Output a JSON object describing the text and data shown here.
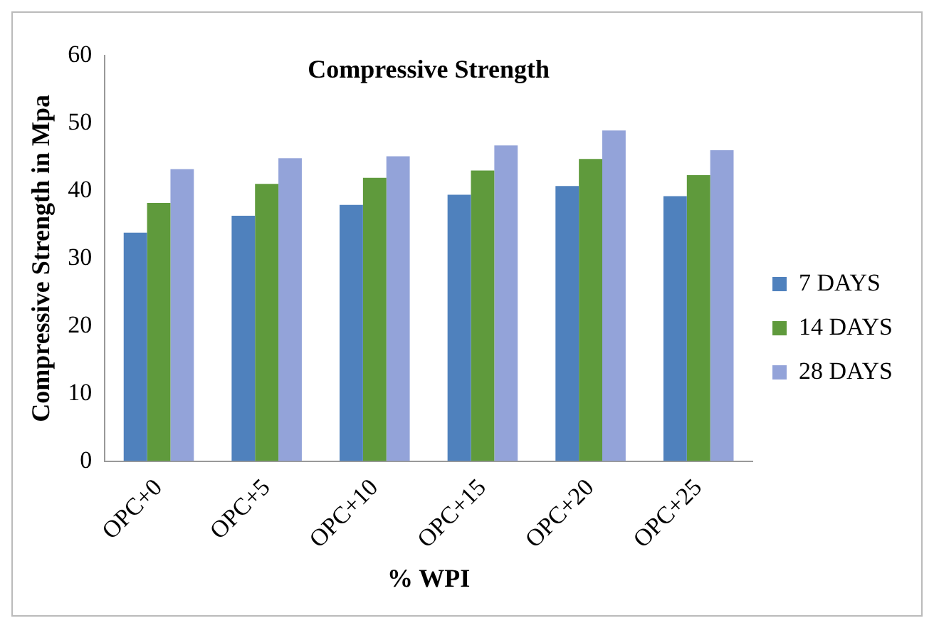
{
  "chart_data": {
    "type": "bar",
    "title": "Compressive Strength",
    "xlabel": "% WPI",
    "ylabel": "Compressive Strength in Mpa",
    "categories": [
      "OPC+0",
      "OPC+5",
      "OPC+10",
      "OPC+15",
      "OPC+20",
      "OPC+25"
    ],
    "series": [
      {
        "name": "7 DAYS",
        "color": "#4f81bd",
        "values": [
          33.8,
          36.3,
          37.9,
          39.4,
          40.7,
          39.2
        ]
      },
      {
        "name": "14 DAYS",
        "color": "#5f9a3c",
        "values": [
          38.2,
          41.0,
          41.9,
          43.0,
          44.7,
          42.3
        ]
      },
      {
        "name": "28 DAYS",
        "color": "#93a3d9",
        "values": [
          43.2,
          44.8,
          45.1,
          46.7,
          48.9,
          46.0
        ]
      }
    ],
    "ylim": [
      0,
      60
    ],
    "yticks": [
      0,
      10,
      20,
      30,
      40,
      50,
      60
    ],
    "grid": false,
    "legend": "right"
  }
}
